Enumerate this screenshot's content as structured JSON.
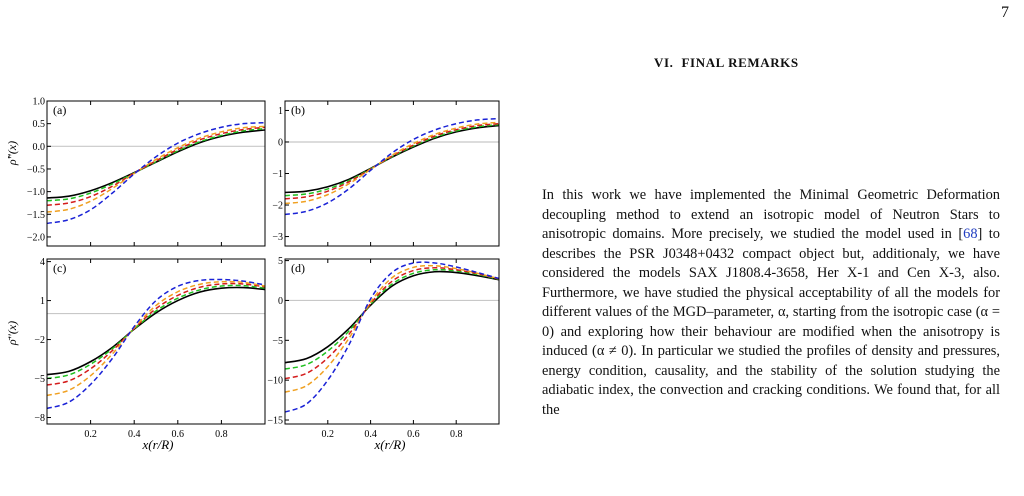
{
  "page": {
    "number": "7"
  },
  "section": {
    "number": "VI.",
    "title": "FINAL REMARKS"
  },
  "paragraph": {
    "segments": [
      {
        "text": "In this work we have implemented the Minimal Geometric Deformation decoupling method to extend an isotropic model of Neutron Stars to anisotropic domains. More precisely, we studied the model used in [",
        "ref": false
      },
      {
        "text": "68",
        "ref": true
      },
      {
        "text": "] to describes the PSR J0348+0432 compact object but, additionaly, we have considered the models SAX J1808.4-3658, Her X-1 and Cen X-3, also. Furthermore, we have studied the physical acceptability of all the models for different values of the MGD–parameter, α, starting from the isotropic case (α = 0) and exploring how their behaviour are modified when the anisotropy is induced (α ≠ 0). In particular we studied the profiles of density and pressures, energy condition, causality, and the stability of the solution studying the adiabatic index, the convection and cracking conditions. We found that, for all the",
        "ref": false
      }
    ]
  },
  "figure": {
    "colors": {
      "black": "#000000",
      "green": "#1fc01f",
      "red": "#d41c1c",
      "orange": "#f0a020",
      "blue": "#1a22d6",
      "zero": "#c8c8c8"
    },
    "ylabels": {
      "top": "ρ̃′′(x)",
      "bottom": "ρ̄′′(x)"
    },
    "xlabel": "x(r/R)",
    "xticks": [
      "0.2",
      "0.4",
      "0.6",
      "0.8"
    ],
    "chart_data": [
      {
        "panel": "(a)",
        "type": "line",
        "ylim": [
          -2.2,
          1.0
        ],
        "yticks": [
          "1.0",
          "0.5",
          "0.0",
          "−0.5",
          "−1.0",
          "−1.5",
          "−2.0"
        ],
        "ytick_values": [
          1.0,
          0.5,
          0.0,
          -0.5,
          -1.0,
          -1.5,
          -2.0
        ],
        "x": [
          0,
          0.1,
          0.2,
          0.3,
          0.4,
          0.5,
          0.6,
          0.7,
          0.8,
          0.9,
          1.0
        ],
        "series": [
          {
            "color": "black",
            "style": "solid",
            "values": [
              -1.14,
              -1.1,
              -0.98,
              -0.8,
              -0.58,
              -0.35,
              -0.12,
              0.08,
              0.22,
              0.31,
              0.36
            ]
          },
          {
            "color": "green",
            "style": "dashed",
            "values": [
              -1.2,
              -1.16,
              -1.03,
              -0.83,
              -0.59,
              -0.34,
              -0.1,
              0.1,
              0.24,
              0.34,
              0.39
            ]
          },
          {
            "color": "red",
            "style": "dashed",
            "values": [
              -1.3,
              -1.25,
              -1.11,
              -0.88,
              -0.59,
              -0.32,
              -0.07,
              0.14,
              0.28,
              0.37,
              0.42
            ]
          },
          {
            "color": "orange",
            "style": "dashed",
            "values": [
              -1.45,
              -1.39,
              -1.21,
              -0.93,
              -0.6,
              -0.29,
              -0.03,
              0.18,
              0.32,
              0.41,
              0.44
            ]
          },
          {
            "color": "blue",
            "style": "dashed",
            "values": [
              -1.7,
              -1.62,
              -1.4,
              -1.03,
              -0.61,
              -0.23,
              0.07,
              0.28,
              0.42,
              0.5,
              0.52
            ]
          }
        ]
      },
      {
        "panel": "(b)",
        "type": "line",
        "ylim": [
          -3.3,
          1.3
        ],
        "yticks": [
          "1",
          "0",
          "−1",
          "−2",
          "−3"
        ],
        "ytick_values": [
          1,
          0,
          -1,
          -2,
          -3
        ],
        "x": [
          0,
          0.1,
          0.2,
          0.3,
          0.4,
          0.5,
          0.6,
          0.7,
          0.8,
          0.9,
          1.0
        ],
        "series": [
          {
            "color": "black",
            "style": "solid",
            "values": [
              -1.6,
              -1.56,
              -1.42,
              -1.18,
              -0.84,
              -0.48,
              -0.16,
              0.12,
              0.32,
              0.45,
              0.52
            ]
          },
          {
            "color": "green",
            "style": "dashed",
            "values": [
              -1.7,
              -1.65,
              -1.49,
              -1.22,
              -0.85,
              -0.47,
              -0.13,
              0.15,
              0.35,
              0.48,
              0.55
            ]
          },
          {
            "color": "red",
            "style": "dashed",
            "values": [
              -1.8,
              -1.74,
              -1.56,
              -1.26,
              -0.86,
              -0.45,
              -0.1,
              0.19,
              0.39,
              0.52,
              0.58
            ]
          },
          {
            "color": "orange",
            "style": "dashed",
            "values": [
              -1.95,
              -1.88,
              -1.67,
              -1.32,
              -0.87,
              -0.42,
              -0.05,
              0.24,
              0.44,
              0.57,
              0.62
            ]
          },
          {
            "color": "blue",
            "style": "dashed",
            "values": [
              -2.3,
              -2.2,
              -1.93,
              -1.48,
              -0.9,
              -0.35,
              0.08,
              0.38,
              0.58,
              0.7,
              0.74
            ]
          }
        ]
      },
      {
        "panel": "(c)",
        "type": "line",
        "ylim": [
          -8.5,
          4.2
        ],
        "yticks": [
          "4",
          "1",
          "−2",
          "−5",
          "−8"
        ],
        "ytick_values": [
          4,
          1,
          -2,
          -5,
          -8
        ],
        "x": [
          0,
          0.1,
          0.2,
          0.3,
          0.4,
          0.5,
          0.6,
          0.7,
          0.8,
          0.9,
          1.0
        ],
        "series": [
          {
            "color": "black",
            "style": "solid",
            "values": [
              -4.7,
              -4.45,
              -3.7,
              -2.6,
              -1.2,
              0.05,
              1.0,
              1.65,
              1.95,
              2.0,
              1.85
            ]
          },
          {
            "color": "green",
            "style": "dashed",
            "values": [
              -5.0,
              -4.72,
              -3.9,
              -2.7,
              -1.18,
              0.2,
              1.18,
              1.82,
              2.12,
              2.15,
              1.95
            ]
          },
          {
            "color": "red",
            "style": "dashed",
            "values": [
              -5.5,
              -5.18,
              -4.25,
              -2.85,
              -1.15,
              0.38,
              1.4,
              2.02,
              2.28,
              2.28,
              2.05
            ]
          },
          {
            "color": "orange",
            "style": "dashed",
            "values": [
              -6.3,
              -5.9,
              -4.78,
              -3.1,
              -1.1,
              0.62,
              1.68,
              2.25,
              2.45,
              2.4,
              2.12
            ]
          },
          {
            "color": "blue",
            "style": "dashed",
            "values": [
              -7.3,
              -6.82,
              -5.45,
              -3.45,
              -1.0,
              1.0,
              2.1,
              2.55,
              2.62,
              2.5,
              2.2
            ]
          }
        ]
      },
      {
        "panel": "(d)",
        "type": "line",
        "ylim": [
          -15.5,
          5.2
        ],
        "yticks": [
          "5",
          "0",
          "−5",
          "−10",
          "−15"
        ],
        "ytick_values": [
          5,
          0,
          -5,
          -10,
          -15
        ],
        "x": [
          0,
          0.1,
          0.2,
          0.3,
          0.4,
          0.5,
          0.6,
          0.7,
          0.8,
          0.9,
          1.0
        ],
        "series": [
          {
            "color": "black",
            "style": "solid",
            "values": [
              -7.8,
              -7.3,
              -5.8,
              -3.5,
              -0.6,
              1.8,
              3.1,
              3.6,
              3.5,
              3.1,
              2.6
            ]
          },
          {
            "color": "green",
            "style": "dashed",
            "values": [
              -8.6,
              -8.05,
              -6.35,
              -3.8,
              -0.5,
              2.05,
              3.4,
              3.85,
              3.7,
              3.25,
              2.65
            ]
          },
          {
            "color": "red",
            "style": "dashed",
            "values": [
              -9.8,
              -9.15,
              -7.2,
              -4.2,
              -0.4,
              2.4,
              3.75,
              4.1,
              3.85,
              3.35,
              2.7
            ]
          },
          {
            "color": "orange",
            "style": "dashed",
            "values": [
              -11.5,
              -10.7,
              -8.3,
              -4.7,
              -0.2,
              2.85,
              4.15,
              4.35,
              4.0,
              3.4,
              2.72
            ]
          },
          {
            "color": "blue",
            "style": "dashed",
            "values": [
              -14.0,
              -13.0,
              -10.0,
              -5.5,
              0.2,
              3.5,
              4.7,
              4.7,
              4.2,
              3.5,
              2.75
            ]
          }
        ]
      }
    ]
  }
}
